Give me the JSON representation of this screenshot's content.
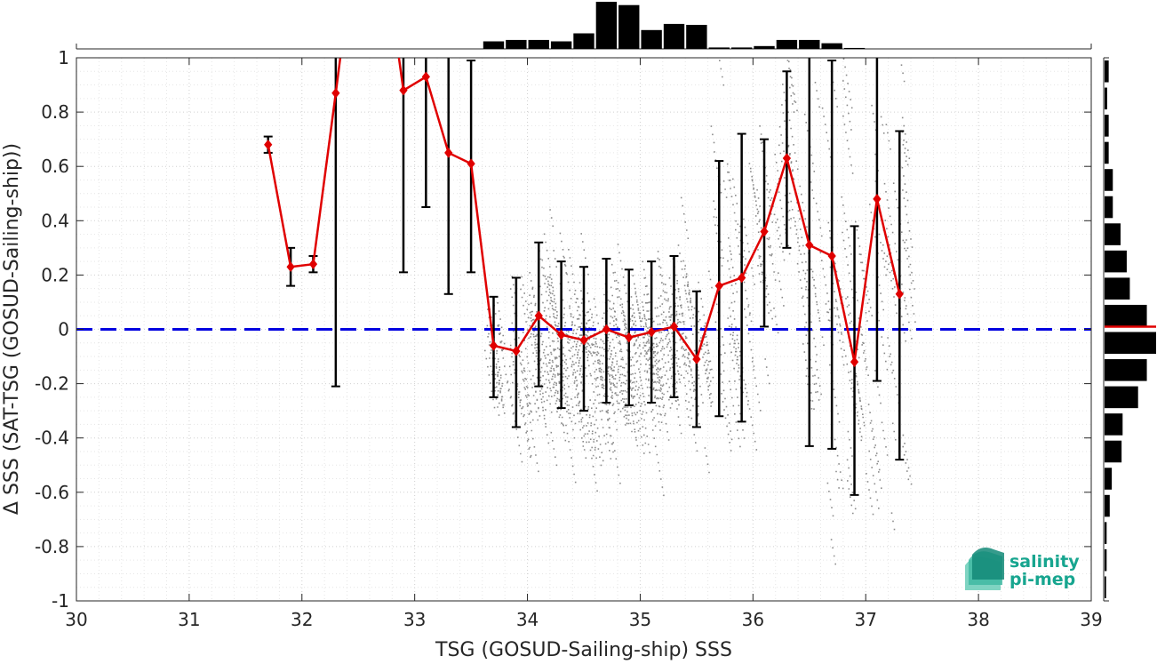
{
  "chart_data": {
    "type": "scatter",
    "xlabel": "TSG (GOSUD-Sailing-ship) SSS",
    "ylabel": "Δ SSS (SAT-TSG (GOSUD-Sailing-ship))",
    "xlim": [
      30,
      39
    ],
    "ylim": [
      -1,
      1
    ],
    "xticks": [
      "30",
      "31",
      "32",
      "33",
      "34",
      "35",
      "36",
      "37",
      "38",
      "39"
    ],
    "yticks": [
      "-1",
      "-0.8",
      "-0.6",
      "-0.4",
      "-0.2",
      "0",
      "0.2",
      "0.4",
      "0.6",
      "0.8",
      "1"
    ],
    "grid": true,
    "zero_line": {
      "y": 0,
      "color": "#0000e0",
      "style": "dashed"
    },
    "colors": {
      "mean": "#e00000",
      "errorbar": "#000000",
      "scatter": "#8c8c8c",
      "hist": "#000000"
    },
    "binned_mean": {
      "x": [
        31.7,
        31.9,
        32.1,
        32.3,
        32.9,
        33.1,
        33.3,
        33.5,
        33.7,
        33.9,
        34.1,
        34.3,
        34.5,
        34.7,
        34.9,
        35.1,
        35.3,
        35.5,
        35.7,
        35.9,
        36.1,
        36.3,
        36.5,
        36.7,
        36.9,
        37.1,
        37.3
      ],
      "mean": [
        0.68,
        0.23,
        0.24,
        0.87,
        0.88,
        0.93,
        0.65,
        0.61,
        -0.06,
        -0.08,
        0.05,
        -0.02,
        -0.04,
        0.0,
        -0.03,
        -0.01,
        0.01,
        -0.11,
        0.16,
        0.19,
        0.36,
        0.63,
        0.31,
        0.27,
        -0.12,
        0.48,
        0.13
      ],
      "low": [
        0.65,
        0.16,
        0.21,
        -0.21,
        0.21,
        0.45,
        0.13,
        0.21,
        -0.25,
        -0.36,
        -0.21,
        -0.29,
        -0.3,
        -0.27,
        -0.28,
        -0.27,
        -0.25,
        -0.36,
        -0.32,
        -0.34,
        0.01,
        0.3,
        -0.43,
        -0.44,
        -0.61,
        -0.19,
        -0.48
      ],
      "high": [
        0.71,
        0.3,
        0.27,
        1.0,
        1.0,
        1.0,
        1.0,
        0.99,
        0.12,
        0.19,
        0.32,
        0.25,
        0.23,
        0.26,
        0.22,
        0.25,
        0.27,
        0.14,
        0.62,
        0.72,
        0.7,
        0.95,
        1.0,
        0.99,
        0.38,
        1.0,
        0.73
      ],
      "upper_cap_hidden": [
        false,
        false,
        false,
        true,
        true,
        true,
        true,
        false,
        false,
        false,
        false,
        false,
        false,
        false,
        false,
        false,
        false,
        false,
        false,
        false,
        false,
        false,
        true,
        false,
        false,
        true,
        false
      ]
    },
    "x_histogram": {
      "bins": [
        33.7,
        33.9,
        34.1,
        34.3,
        34.5,
        34.7,
        34.9,
        35.1,
        35.3,
        35.5,
        35.7,
        35.9,
        36.1,
        36.3,
        36.5,
        36.7,
        36.9
      ],
      "counts": [
        0.16,
        0.19,
        0.19,
        0.16,
        0.33,
        1.0,
        0.93,
        0.4,
        0.53,
        0.51,
        0.03,
        0.03,
        0.06,
        0.19,
        0.19,
        0.12,
        0.02
      ]
    },
    "y_histogram": {
      "bins": [
        0.95,
        0.85,
        0.75,
        0.65,
        0.55,
        0.45,
        0.35,
        0.25,
        0.15,
        0.05,
        -0.05,
        -0.15,
        -0.25,
        -0.35,
        -0.45,
        -0.55,
        -0.65,
        -0.75,
        -0.85,
        -0.95
      ],
      "counts": [
        0.08,
        0.05,
        0.08,
        0.08,
        0.16,
        0.16,
        0.31,
        0.43,
        0.49,
        0.82,
        1.0,
        0.82,
        0.65,
        0.35,
        0.33,
        0.14,
        0.1,
        0.04,
        0.04,
        0.03
      ],
      "mean_marker": 0.01
    }
  },
  "logo": {
    "line1": "salinity",
    "line2": "pi-mep"
  }
}
